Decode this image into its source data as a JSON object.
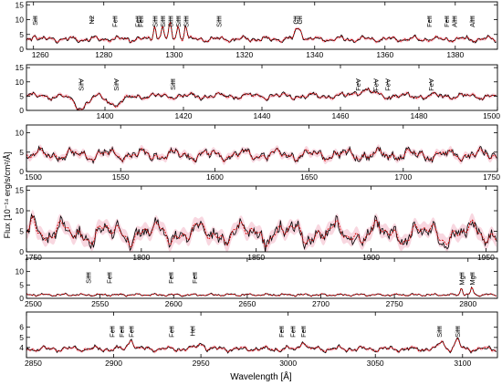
{
  "figure": {
    "ylabel": "Flux [10⁻¹⁴ erg/s/cm²/Å]",
    "xlabel": "Wavelength [Å]"
  },
  "colors": {
    "observed": "#000000",
    "model": "#d40000",
    "band": "#f6c9d6"
  },
  "chart_data": [
    {
      "type": "line",
      "xlim": [
        1258,
        1392
      ],
      "ylim": [
        0,
        16
      ],
      "xticks": [
        1260,
        1280,
        1300,
        1320,
        1340,
        1360,
        1380
      ],
      "yticks": [
        0,
        5,
        10,
        15
      ],
      "lines": [
        {
          "label": "SiII",
          "x": 1260.4
        },
        {
          "label": "N2",
          "x": 1276.5
        },
        {
          "label": "FeII",
          "x": 1283.0
        },
        {
          "label": "FeII",
          "x": 1289.5
        },
        {
          "label": "FeII",
          "x": 1290.5
        },
        {
          "label": "SiIII",
          "x": 1294.5
        },
        {
          "label": "SiIII",
          "x": 1296.7
        },
        {
          "label": "SiIII",
          "x": 1298.9
        },
        {
          "label": "SiIII",
          "x": 1301.1
        },
        {
          "label": "SiIII",
          "x": 1303.3
        },
        {
          "label": "SiIII",
          "x": 1312.6
        },
        {
          "label": "CII",
          "x": 1334.5
        },
        {
          "label": "CII",
          "x": 1335.7
        },
        {
          "label": "FeII",
          "x": 1372.5
        },
        {
          "label": "FeII",
          "x": 1377.5
        },
        {
          "label": "AlIII",
          "x": 1379.7
        },
        {
          "label": "AlIII",
          "x": 1384.7
        }
      ],
      "features": [
        {
          "x": 1294.5,
          "d": 5,
          "w": 0.5
        },
        {
          "x": 1296.7,
          "d": 5,
          "w": 0.5
        },
        {
          "x": 1298.9,
          "d": 5,
          "w": 0.5
        },
        {
          "x": 1301.1,
          "d": 5,
          "w": 0.5
        },
        {
          "x": 1303.3,
          "d": 5,
          "w": 0.5
        },
        {
          "x": 1260.4,
          "d": 2,
          "w": 0.6
        },
        {
          "x": 1334.8,
          "d": 3,
          "w": 0.8
        },
        {
          "x": 1336.0,
          "d": 3,
          "w": 0.8
        }
      ],
      "base": 3.4,
      "noise": 1.0,
      "freq": 0.9,
      "step": 0.35
    },
    {
      "type": "line",
      "xlim": [
        1380,
        1500
      ],
      "ylim": [
        0,
        16
      ],
      "xticks": [
        1400,
        1420,
        1440,
        1460,
        1480,
        1500
      ],
      "yticks": [
        0,
        5,
        10,
        15
      ],
      "lines": [
        {
          "label": "SiIV",
          "x": 1393.8
        },
        {
          "label": "SiIV",
          "x": 1402.8
        },
        {
          "label": "SiIII",
          "x": 1417.2
        },
        {
          "label": "FeV",
          "x": 1464.4
        },
        {
          "label": "FeV",
          "x": 1469.0
        },
        {
          "label": "FeV",
          "x": 1472.0
        },
        {
          "label": "FeV",
          "x": 1483.0
        }
      ],
      "features": [
        {
          "x": 1393.8,
          "d": -4,
          "w": 2.5
        },
        {
          "x": 1402.8,
          "d": -3,
          "w": 2.5
        },
        {
          "x": 1466.0,
          "d": 2,
          "w": 3.0
        }
      ],
      "base": 5.0,
      "noise": 1.2,
      "freq": 0.8,
      "step": 0.35
    },
    {
      "type": "line",
      "xlim": [
        1500,
        1750
      ],
      "ylim": [
        0,
        12
      ],
      "xticks": [
        1500,
        1550,
        1600,
        1650,
        1700,
        1750
      ],
      "yticks": [
        0,
        5,
        10
      ],
      "lines": [],
      "features": [],
      "base": 4.3,
      "noise": 1.6,
      "freq": 0.35,
      "step": 0.6
    },
    {
      "type": "line",
      "xlim": [
        1750,
        1955
      ],
      "ylim": [
        0,
        16
      ],
      "xticks": [
        1750,
        1800,
        1850,
        1900,
        1950
      ],
      "yticks": [
        0,
        5,
        10,
        15
      ],
      "lines": [],
      "features": [
        {
          "x": 1753,
          "d": 6,
          "w": 1.5
        }
      ],
      "base": 4.5,
      "noise": 3.0,
      "freq": 0.32,
      "step": 0.55
    },
    {
      "type": "line",
      "xlim": [
        2500,
        2820
      ],
      "ylim": [
        0,
        15
      ],
      "xticks": [
        2500,
        2550,
        2600,
        2650,
        2700,
        2750,
        2800
      ],
      "yticks": [
        0,
        5,
        10
      ],
      "lines": [
        {
          "label": "SiIII",
          "x": 2541.8
        },
        {
          "label": "FeII",
          "x": 2556.0
        },
        {
          "label": "FeII",
          "x": 2598.0
        },
        {
          "label": "FeII",
          "x": 2614.0
        },
        {
          "label": "MgII",
          "x": 2795.5
        },
        {
          "label": "MgII",
          "x": 2802.7
        }
      ],
      "features": [
        {
          "x": 2795.5,
          "d": 3,
          "w": 1.0
        },
        {
          "x": 2802.7,
          "d": 3,
          "w": 1.0
        }
      ],
      "base": 1.3,
      "noise": 0.5,
      "freq": 0.5,
      "step": 0.8
    },
    {
      "type": "line",
      "xlim": [
        2850,
        3120
      ],
      "ylim": [
        3,
        7.5
      ],
      "xticks": [
        2850,
        2900,
        2950,
        3000,
        3050,
        3100
      ],
      "yticks": [
        4,
        5,
        6
      ],
      "lines": [
        {
          "label": "FeII",
          "x": 2899.0
        },
        {
          "label": "FeII",
          "x": 2904.5
        },
        {
          "label": "FeII",
          "x": 2910.0
        },
        {
          "label": "FeII",
          "x": 2933.0
        },
        {
          "label": "HeI",
          "x": 2945.1
        },
        {
          "label": "FeII",
          "x": 2996.0
        },
        {
          "label": "FeII",
          "x": 3002.6
        },
        {
          "label": "FeII",
          "x": 3008.5
        },
        {
          "label": "SiIII",
          "x": 3086.5
        },
        {
          "label": "SiIII",
          "x": 3097.0
        }
      ],
      "features": [
        {
          "x": 2910.0,
          "d": 1.0,
          "w": 2.0
        },
        {
          "x": 3008.5,
          "d": 0.8,
          "w": 2.0
        },
        {
          "x": 3088.0,
          "d": 0.8,
          "w": 2.0
        },
        {
          "x": 3097.0,
          "d": 0.8,
          "w": 2.0
        },
        {
          "x": 2950.0,
          "d": 0.5,
          "w": 3.0
        }
      ],
      "base": 3.85,
      "noise": 0.28,
      "freq": 0.45,
      "step": 0.7
    }
  ]
}
